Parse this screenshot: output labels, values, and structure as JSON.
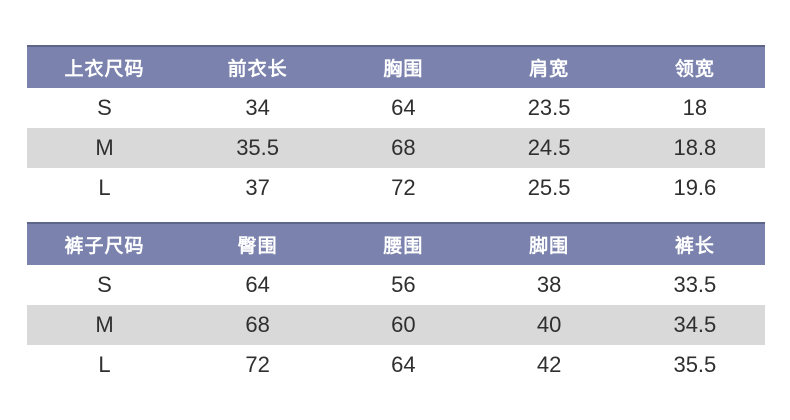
{
  "colors": {
    "header_bg": "#7a82ad",
    "header_top_border": "#5d6689",
    "header_text": "#ffffff",
    "row_alt_bg": "#d9d9d9",
    "row_bg": "#ffffff",
    "body_text": "#2f2f2f",
    "page_bg": "#ffffff"
  },
  "tables": [
    {
      "id": "top-sizes-table",
      "title_column": "上衣尺码",
      "headers": [
        "上衣尺码",
        "前衣长",
        "胸围",
        "肩宽",
        "领宽"
      ],
      "rows": [
        [
          "S",
          "34",
          "64",
          "23.5",
          "18"
        ],
        [
          "M",
          "35.5",
          "68",
          "24.5",
          "18.8"
        ],
        [
          "L",
          "37",
          "72",
          "25.5",
          "19.6"
        ]
      ]
    },
    {
      "id": "pants-sizes-table",
      "title_column": "裤子尺码",
      "headers": [
        "裤子尺码",
        "臀围",
        "腰围",
        "脚围",
        "裤长"
      ],
      "rows": [
        [
          "S",
          "64",
          "56",
          "38",
          "33.5"
        ],
        [
          "M",
          "68",
          "60",
          "40",
          "34.5"
        ],
        [
          "L",
          "72",
          "64",
          "42",
          "35.5"
        ]
      ]
    }
  ]
}
